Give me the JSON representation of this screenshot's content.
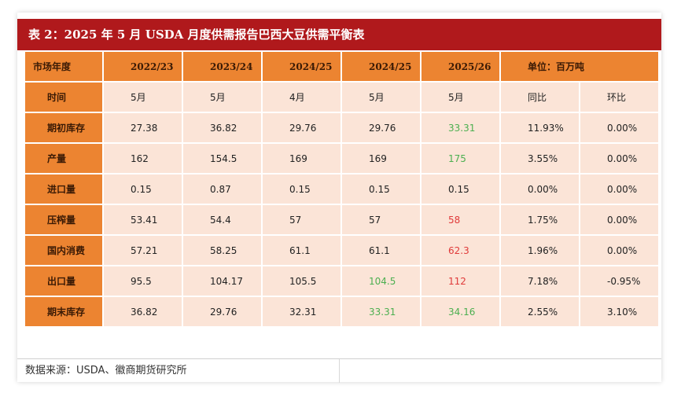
{
  "title": "表 2：2025 年 5 月 USDA 月度供需报告巴西大豆供需平衡表",
  "header": {
    "label": "市场年度",
    "years": [
      "2022/23",
      "2023/24",
      "2024/25",
      "2024/25",
      "2025/26"
    ],
    "unit": "单位：百万吨"
  },
  "rows": [
    {
      "label": "时间",
      "cells": [
        "5月",
        "5月",
        "4月",
        "5月",
        "5月",
        "同比",
        "环比"
      ]
    },
    {
      "label": "期初库存",
      "cells": [
        "27.38",
        "36.82",
        "29.76",
        "29.76",
        "33.31",
        "11.93%",
        "0.00%"
      ]
    },
    {
      "label": "产量",
      "cells": [
        "162",
        "154.5",
        "169",
        "169",
        "175",
        "3.55%",
        "0.00%"
      ]
    },
    {
      "label": "进口量",
      "cells": [
        "0.15",
        "0.87",
        "0.15",
        "0.15",
        "0.15",
        "0.00%",
        "0.00%"
      ]
    },
    {
      "label": "压榨量",
      "cells": [
        "53.41",
        "54.4",
        "57",
        "57",
        "58",
        "1.75%",
        "0.00%"
      ]
    },
    {
      "label": "国内消费",
      "cells": [
        "57.21",
        "58.25",
        "61.1",
        "61.1",
        "62.3",
        "1.96%",
        "0.00%"
      ]
    },
    {
      "label": "出口量",
      "cells": [
        "95.5",
        "104.17",
        "105.5",
        "104.5",
        "112",
        "7.18%",
        "-0.95%"
      ]
    },
    {
      "label": "期末库存",
      "cells": [
        "36.82",
        "29.76",
        "32.31",
        "33.31",
        "34.16",
        "2.55%",
        "3.10%"
      ]
    }
  ],
  "highlight_colors": {
    "up": "#4caf50",
    "down": "#e03a3a"
  },
  "footer": {
    "source": "数据来源：USDA、徽商期货研究所"
  }
}
